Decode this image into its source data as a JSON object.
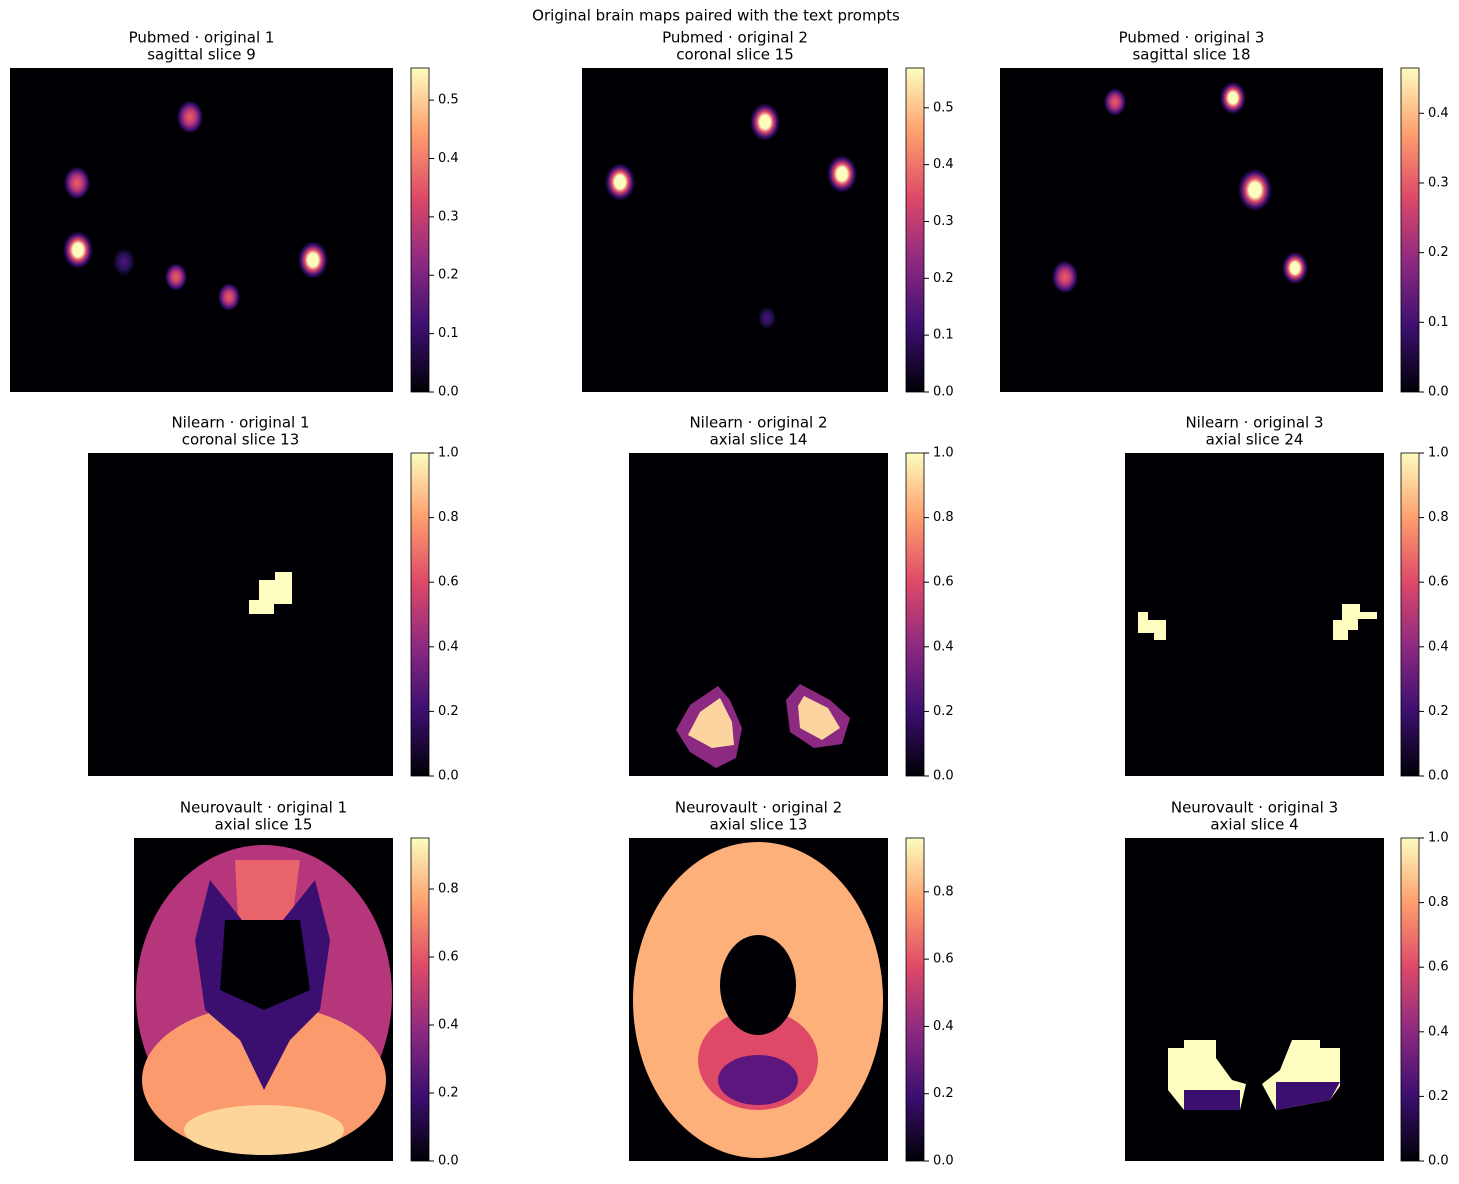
{
  "title": "Original brain maps paired with the text prompts",
  "chart_data": [
    {
      "type": "heatmap",
      "title": [
        "Pubmed · original 1",
        "sagittal slice 9"
      ],
      "ylim": [
        0,
        0.555
      ],
      "yticks": [
        {
          "value": 0,
          "label": "0.0"
        },
        0.1,
        0.2,
        0.3,
        0.4,
        0.5
      ]
    },
    {
      "type": "heatmap",
      "title": [
        "Pubmed · original 2",
        "coronal slice 15"
      ],
      "ylim": [
        0,
        0.57
      ],
      "yticks": [
        {
          "value": 0,
          "label": "0.0"
        },
        0.1,
        0.2,
        0.3,
        0.4,
        0.5
      ]
    },
    {
      "type": "heatmap",
      "title": [
        "Pubmed · original 3",
        "sagittal slice 18"
      ],
      "ylim": [
        0,
        0.465
      ],
      "yticks": [
        {
          "value": 0,
          "label": "0.0"
        },
        0.1,
        0.2,
        0.3,
        0.4
      ]
    },
    {
      "type": "heatmap",
      "title": [
        "Nilearn · original 1",
        "coronal slice 13"
      ],
      "ylim": [
        0,
        1
      ],
      "yticks": [
        {
          "value": 0,
          "label": "0.0"
        },
        0.2,
        0.4,
        0.6,
        0.8,
        {
          "value": 1,
          "label": "1.0"
        }
      ]
    },
    {
      "type": "heatmap",
      "title": [
        "Nilearn · original 2",
        "axial slice 14"
      ],
      "ylim": [
        0,
        1
      ],
      "yticks": [
        {
          "value": 0,
          "label": "0.0"
        },
        0.2,
        0.4,
        0.6,
        0.8,
        {
          "value": 1,
          "label": "1.0"
        }
      ]
    },
    {
      "type": "heatmap",
      "title": [
        "Nilearn · original 3",
        "axial slice 24"
      ],
      "ylim": [
        0,
        1
      ],
      "yticks": [
        {
          "value": 0,
          "label": "0.0"
        },
        0.2,
        0.4,
        0.6,
        0.8,
        {
          "value": 1,
          "label": "1.0"
        }
      ]
    },
    {
      "type": "heatmap",
      "title": [
        "Neurovault · original 1",
        "axial slice 15"
      ],
      "ylim": [
        0,
        0.95
      ],
      "yticks": [
        {
          "value": 0,
          "label": "0.0"
        },
        0.2,
        0.4,
        0.6,
        0.8
      ]
    },
    {
      "type": "heatmap",
      "title": [
        "Neurovault · original 2",
        "axial slice 13"
      ],
      "ylim": [
        0,
        0.96
      ],
      "yticks": [
        {
          "value": 0,
          "label": "0.0"
        },
        0.2,
        0.4,
        0.6,
        0.8
      ]
    },
    {
      "type": "heatmap",
      "title": [
        "Neurovault · original 3",
        "axial slice 4"
      ],
      "ylim": [
        0,
        1
      ],
      "yticks": [
        {
          "value": 0,
          "label": "0.0"
        },
        0.2,
        0.4,
        0.6,
        0.8,
        {
          "value": 1,
          "label": "1.0"
        }
      ]
    }
  ]
}
